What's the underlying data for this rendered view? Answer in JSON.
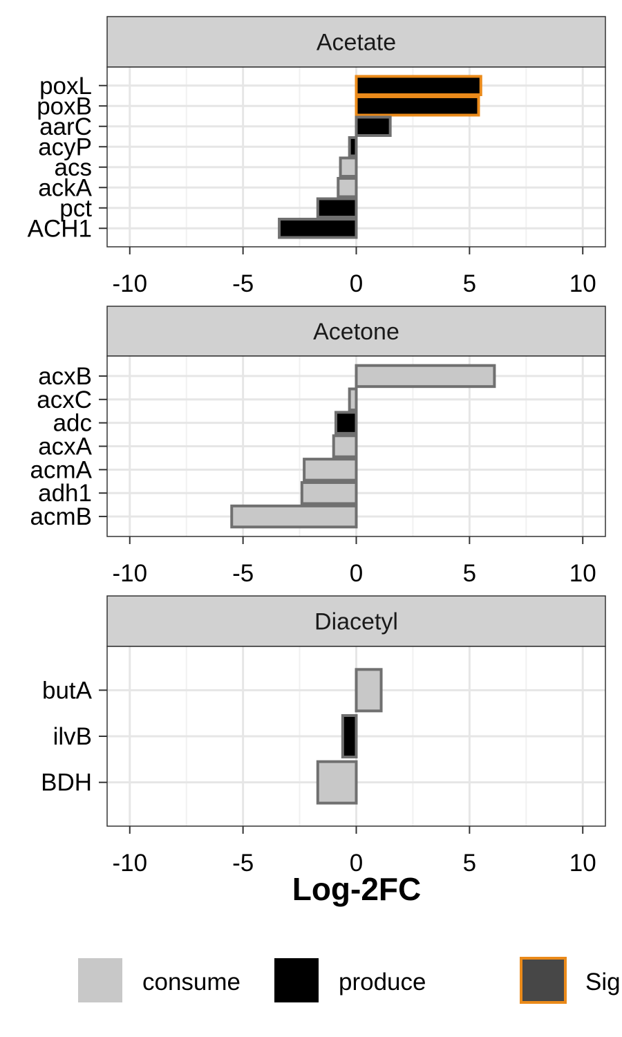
{
  "chart_data": {
    "type": "bar",
    "orientation": "horizontal",
    "xlabel": "Log-2FC",
    "xlim": [
      -11,
      11
    ],
    "xticks": [
      "-10",
      "-5",
      "0",
      "5",
      "10"
    ],
    "xtick_values": [
      -10,
      -5,
      0,
      5,
      10
    ],
    "grid": true,
    "legend_position": "bottom",
    "legend": [
      {
        "label": "consume",
        "fill": "#c8c8c8",
        "stroke": "none"
      },
      {
        "label": "produce",
        "fill": "#000000",
        "stroke": "none"
      },
      {
        "label": "Sig",
        "fill": "#474747",
        "stroke": "#ea8a1a"
      }
    ],
    "colors": {
      "consume": "#c8c8c8",
      "produce": "#000000",
      "border": "#707070",
      "significant_border": "#ea8a1a",
      "strip_fill": "#d1d1d1",
      "grid_major": "#e6e6e6",
      "grid_minor": "#f1f1f1"
    },
    "panels": [
      {
        "title": "Acetate",
        "bars": [
          {
            "gene": "poxL",
            "value": 5.5,
            "type": "produce",
            "significant": true
          },
          {
            "gene": "poxB",
            "value": 5.4,
            "type": "produce",
            "significant": true
          },
          {
            "gene": "aarC",
            "value": 1.5,
            "type": "produce",
            "significant": false
          },
          {
            "gene": "acyP",
            "value": -0.3,
            "type": "produce",
            "significant": false
          },
          {
            "gene": "acs",
            "value": -0.7,
            "type": "consume",
            "significant": false
          },
          {
            "gene": "ackA",
            "value": -0.8,
            "type": "consume",
            "significant": false
          },
          {
            "gene": "pct",
            "value": -1.7,
            "type": "produce",
            "significant": false
          },
          {
            "gene": "ACH1",
            "value": -3.4,
            "type": "produce",
            "significant": false
          }
        ]
      },
      {
        "title": "Acetone",
        "bars": [
          {
            "gene": "acxB",
            "value": 6.1,
            "type": "consume",
            "significant": false
          },
          {
            "gene": "acxC",
            "value": -0.3,
            "type": "consume",
            "significant": false
          },
          {
            "gene": "adc",
            "value": -0.9,
            "type": "produce",
            "significant": false
          },
          {
            "gene": "acxA",
            "value": -1.0,
            "type": "consume",
            "significant": false
          },
          {
            "gene": "acmA",
            "value": -2.3,
            "type": "consume",
            "significant": false
          },
          {
            "gene": "adh1",
            "value": -2.4,
            "type": "consume",
            "significant": false
          },
          {
            "gene": "acmB",
            "value": -5.5,
            "type": "consume",
            "significant": false
          }
        ]
      },
      {
        "title": "Diacetyl",
        "bars": [
          {
            "gene": "butA",
            "value": 1.1,
            "type": "consume",
            "significant": false
          },
          {
            "gene": "ilvB",
            "value": -0.6,
            "type": "produce",
            "significant": false
          },
          {
            "gene": "BDH",
            "value": -1.7,
            "type": "consume",
            "significant": false
          }
        ]
      }
    ]
  }
}
